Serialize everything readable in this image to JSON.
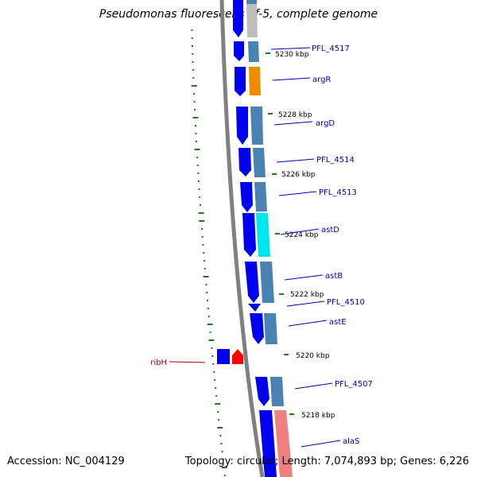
{
  "title": "Pseudomonas fluorescens Pf-5, complete genome",
  "accession": "Accession: NC_004129",
  "summary": "Topology: circular; Length: 7,074,893 bp; Genes: 6,226",
  "ticks": [
    "5230 kbp",
    "5228 kbp",
    "5226 kbp",
    "5224 kbp",
    "5222 kbp",
    "5220 kbp",
    "5218 kbp"
  ],
  "genes": [
    {
      "label": "PFL_4517",
      "color": "#0000aa"
    },
    {
      "label": "argR",
      "color": "#0000aa"
    },
    {
      "label": "argD",
      "color": "#0000aa"
    },
    {
      "label": "PFL_4514",
      "color": "#0000aa"
    },
    {
      "label": "PFL_4513",
      "color": "#0000aa"
    },
    {
      "label": "astD",
      "color": "#0000aa"
    },
    {
      "label": "astB",
      "color": "#0000aa"
    },
    {
      "label": "PFL_4510",
      "color": "#0000aa"
    },
    {
      "label": "astE",
      "color": "#0000aa"
    },
    {
      "label": "PFL_4507",
      "color": "#0000aa"
    },
    {
      "label": "alaS",
      "color": "#0000aa"
    },
    {
      "label": "ribH",
      "color": "#aa0000"
    }
  ],
  "colors": {
    "cds": "#0000ee",
    "cds_highlight": "#ff0000",
    "steelblue": "#4a82b4",
    "orange": "#f08c00",
    "cyan": "#00e5ee",
    "salmon": "#f08080",
    "gray": "#bdbdbd",
    "backbone": "#808080",
    "gc_skew": "#1b7a1b"
  }
}
